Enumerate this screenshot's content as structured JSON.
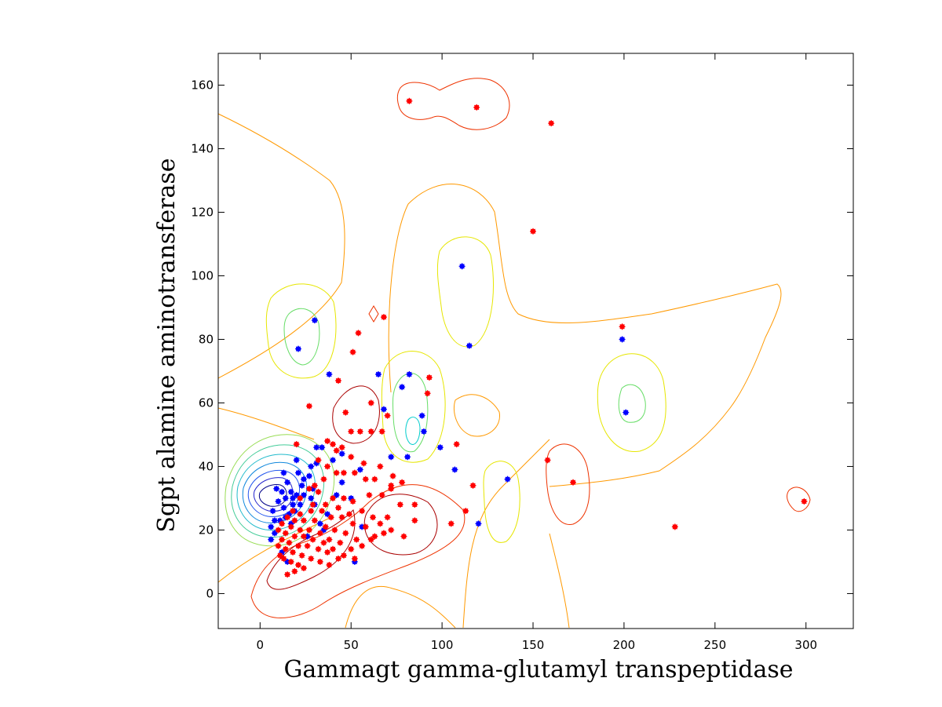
{
  "chart_data": {
    "type": "scatter",
    "xlabel": "Gammagt gamma-glutamyl transpeptidase",
    "ylabel": "Sgpt alamine aminotransferase",
    "xlim": [
      -23,
      326
    ],
    "ylim": [
      -11,
      170
    ],
    "xticks": [
      0,
      50,
      100,
      150,
      200,
      250,
      300
    ],
    "yticks": [
      0,
      20,
      40,
      60,
      80,
      100,
      120,
      140,
      160
    ],
    "grid": false,
    "legend": "none",
    "overlay": "density-contours",
    "series": [
      {
        "color": "#0000ff",
        "marker": "star",
        "points": [
          [
            30,
            86
          ],
          [
            21,
            77
          ],
          [
            111,
            103
          ],
          [
            115,
            78
          ],
          [
            199,
            80
          ],
          [
            201,
            57
          ],
          [
            38,
            69
          ],
          [
            65,
            69
          ],
          [
            82,
            69
          ],
          [
            78,
            65
          ],
          [
            68,
            58
          ],
          [
            89,
            56
          ],
          [
            90,
            51
          ],
          [
            81,
            43
          ],
          [
            72,
            43
          ],
          [
            99,
            46
          ],
          [
            107,
            39
          ],
          [
            136,
            36
          ],
          [
            120,
            22
          ],
          [
            56,
            21
          ],
          [
            52,
            10
          ],
          [
            50,
            30
          ],
          [
            55,
            39
          ],
          [
            45,
            35
          ],
          [
            45,
            44
          ],
          [
            42,
            31
          ],
          [
            35,
            20
          ],
          [
            30,
            28
          ],
          [
            34,
            46
          ],
          [
            31,
            46
          ],
          [
            29,
            33
          ],
          [
            28,
            40
          ],
          [
            24,
            31
          ],
          [
            23,
            34
          ],
          [
            21,
            38
          ],
          [
            20,
            31
          ],
          [
            20,
            42
          ],
          [
            18,
            28
          ],
          [
            17,
            32
          ],
          [
            16,
            25
          ],
          [
            14,
            30
          ],
          [
            13,
            38
          ],
          [
            11,
            23
          ],
          [
            10,
            29
          ],
          [
            9,
            33
          ],
          [
            8,
            19
          ],
          [
            7,
            26
          ],
          [
            6,
            17
          ],
          [
            6,
            21
          ],
          [
            8,
            23
          ],
          [
            15,
            10
          ],
          [
            12,
            13
          ],
          [
            18,
            30
          ],
          [
            13,
            27
          ],
          [
            15,
            35
          ],
          [
            24,
            36
          ],
          [
            17,
            22
          ],
          [
            19,
            26
          ],
          [
            27,
            37
          ],
          [
            12,
            32
          ],
          [
            14,
            24
          ],
          [
            22,
            28
          ],
          [
            33,
            22
          ],
          [
            37,
            25
          ],
          [
            26,
            18
          ],
          [
            28,
            30
          ],
          [
            31,
            41
          ],
          [
            40,
            42
          ]
        ]
      },
      {
        "color": "#ff0000",
        "marker": "star",
        "points": [
          [
            82,
            155
          ],
          [
            119,
            153
          ],
          [
            160,
            148
          ],
          [
            150,
            114
          ],
          [
            199,
            84
          ],
          [
            54,
            82
          ],
          [
            68,
            87
          ],
          [
            51,
            76
          ],
          [
            93,
            68
          ],
          [
            43,
            67
          ],
          [
            61,
            60
          ],
          [
            92,
            63
          ],
          [
            70,
            56
          ],
          [
            27,
            59
          ],
          [
            47,
            57
          ],
          [
            50,
            51
          ],
          [
            55,
            51
          ],
          [
            61,
            51
          ],
          [
            67,
            51
          ],
          [
            108,
            47
          ],
          [
            37,
            48
          ],
          [
            40,
            47
          ],
          [
            45,
            46
          ],
          [
            20,
            47
          ],
          [
            42,
            45
          ],
          [
            50,
            43
          ],
          [
            57,
            41
          ],
          [
            66,
            40
          ],
          [
            73,
            37
          ],
          [
            158,
            42
          ],
          [
            32,
            42
          ],
          [
            37,
            40
          ],
          [
            42,
            38
          ],
          [
            46,
            38
          ],
          [
            52,
            38
          ],
          [
            58,
            36
          ],
          [
            63,
            36
          ],
          [
            72,
            34
          ],
          [
            78,
            35
          ],
          [
            117,
            34
          ],
          [
            172,
            35
          ],
          [
            30,
            34
          ],
          [
            35,
            36
          ],
          [
            27,
            33
          ],
          [
            32,
            32
          ],
          [
            40,
            30
          ],
          [
            46,
            30
          ],
          [
            51,
            29
          ],
          [
            60,
            31
          ],
          [
            67,
            31
          ],
          [
            72,
            33
          ],
          [
            85,
            28
          ],
          [
            22,
            30
          ],
          [
            29,
            28
          ],
          [
            36,
            28
          ],
          [
            43,
            27
          ],
          [
            49,
            25
          ],
          [
            56,
            26
          ],
          [
            62,
            24
          ],
          [
            70,
            24
          ],
          [
            77,
            28
          ],
          [
            85,
            23
          ],
          [
            18,
            26
          ],
          [
            22,
            25
          ],
          [
            28,
            26
          ],
          [
            34,
            26
          ],
          [
            39,
            24
          ],
          [
            45,
            24
          ],
          [
            51,
            22
          ],
          [
            58,
            21
          ],
          [
            66,
            22
          ],
          [
            72,
            20
          ],
          [
            79,
            18
          ],
          [
            105,
            22
          ],
          [
            113,
            26
          ],
          [
            15,
            24
          ],
          [
            19,
            23
          ],
          [
            24,
            23
          ],
          [
            30,
            23
          ],
          [
            36,
            21
          ],
          [
            41,
            20
          ],
          [
            47,
            19
          ],
          [
            53,
            17
          ],
          [
            61,
            17
          ],
          [
            68,
            19
          ],
          [
            228,
            21
          ],
          [
            299,
            29
          ],
          [
            12,
            22
          ],
          [
            17,
            21
          ],
          [
            22,
            20
          ],
          [
            27,
            20
          ],
          [
            33,
            19
          ],
          [
            38,
            17
          ],
          [
            44,
            16
          ],
          [
            50,
            14
          ],
          [
            56,
            15
          ],
          [
            63,
            18
          ],
          [
            10,
            20
          ],
          [
            14,
            19
          ],
          [
            19,
            18
          ],
          [
            24,
            18
          ],
          [
            29,
            17
          ],
          [
            35,
            16
          ],
          [
            40,
            14
          ],
          [
            46,
            12
          ],
          [
            52,
            11
          ],
          [
            12,
            17
          ],
          [
            16,
            16
          ],
          [
            21,
            15
          ],
          [
            26,
            15
          ],
          [
            32,
            14
          ],
          [
            37,
            13
          ],
          [
            43,
            11
          ],
          [
            14,
            14
          ],
          [
            18,
            13
          ],
          [
            23,
            12
          ],
          [
            28,
            11
          ],
          [
            33,
            10
          ],
          [
            38,
            9
          ],
          [
            13,
            11
          ],
          [
            17,
            10
          ],
          [
            21,
            9
          ],
          [
            15,
            6
          ],
          [
            19,
            7
          ],
          [
            24,
            8
          ],
          [
            10,
            15
          ],
          [
            11,
            12
          ]
        ]
      }
    ]
  }
}
